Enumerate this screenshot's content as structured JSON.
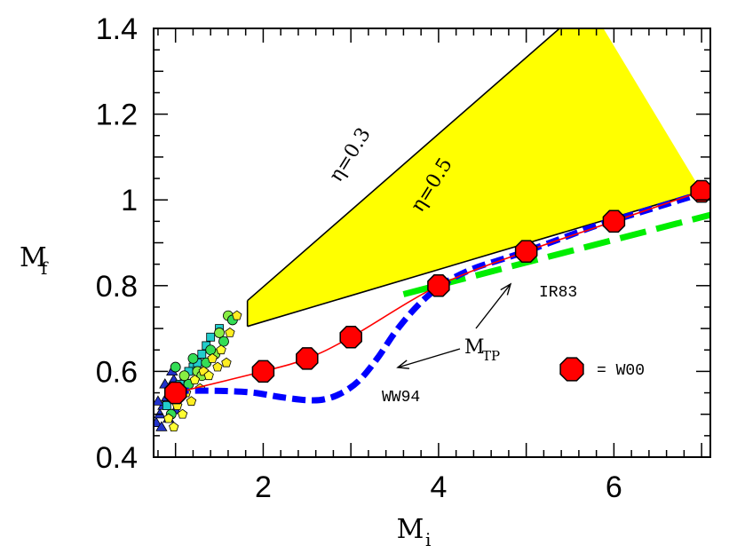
{
  "chart_data": {
    "type": "line",
    "xlabel": "M",
    "xlabel_sub": "i",
    "ylabel": "M",
    "ylabel_sub": "f",
    "xlim": [
      0.75,
      7.1
    ],
    "ylim": [
      0.4,
      1.4
    ],
    "x_ticks": [
      2,
      4,
      6
    ],
    "x_tick_labels": [
      "2",
      "4",
      "6"
    ],
    "y_ticks": [
      0.4,
      0.6,
      0.8,
      1.0,
      1.2,
      1.4
    ],
    "y_tick_labels": [
      "0.4",
      "0.6",
      "0.8",
      "1",
      "1.2",
      "1.4"
    ],
    "colors": {
      "band": "#ffff00",
      "w00_line": "#ff0000",
      "w00_marker": "#ff0000",
      "ww94": "#0000ff",
      "ir83": "#00ee00",
      "axes": "#000000"
    },
    "series": [
      {
        "name": "W00",
        "style": "markers+line",
        "x": [
          1.0,
          2.0,
          2.5,
          3.0,
          4.0,
          5.0,
          6.0,
          7.0
        ],
        "y": [
          0.55,
          0.6,
          0.63,
          0.68,
          0.8,
          0.88,
          0.95,
          1.02
        ]
      },
      {
        "name": "WW94",
        "style": "dashed-thick",
        "x": [
          1.0,
          1.3,
          1.6,
          1.9,
          2.2,
          2.5,
          2.7,
          2.9,
          3.1,
          3.3,
          3.5,
          3.7,
          3.9,
          4.1,
          4.4,
          4.7,
          5.0,
          5.4,
          5.8,
          6.2,
          6.6,
          7.0
        ],
        "y": [
          0.555,
          0.555,
          0.554,
          0.55,
          0.54,
          0.533,
          0.535,
          0.55,
          0.58,
          0.63,
          0.69,
          0.74,
          0.78,
          0.81,
          0.84,
          0.86,
          0.88,
          0.91,
          0.94,
          0.965,
          0.99,
          1.015
        ]
      },
      {
        "name": "IR83",
        "style": "dashed-thick",
        "x": [
          3.6,
          7.1
        ],
        "y": [
          0.78,
          0.965
        ]
      }
    ],
    "band": {
      "upper": {
        "label": "η=0.3",
        "x": [
          1.82,
          5.38
        ],
        "y": [
          0.765,
          1.4
        ]
      },
      "lower": {
        "label": "η=0.5",
        "x": [
          1.82,
          7.0
        ],
        "y": [
          0.705,
          1.02
        ]
      }
    },
    "observations": {
      "triangles": {
        "x": [
          0.78,
          0.82,
          0.86,
          0.9,
          0.94,
          0.98,
          0.8,
          0.88,
          0.96,
          0.84,
          0.92,
          1.0
        ],
        "y": [
          0.48,
          0.5,
          0.52,
          0.54,
          0.56,
          0.58,
          0.53,
          0.57,
          0.6,
          0.47,
          0.49,
          0.51
        ]
      },
      "circles": {
        "x": [
          0.95,
          1.05,
          1.15,
          1.25,
          1.35,
          1.45,
          1.55,
          1.6,
          1.65,
          1.1,
          1.2,
          1.3,
          1.4,
          1.5,
          1.0
        ],
        "y": [
          0.5,
          0.54,
          0.57,
          0.6,
          0.62,
          0.64,
          0.67,
          0.73,
          0.72,
          0.59,
          0.63,
          0.59,
          0.65,
          0.69,
          0.61
        ]
      },
      "squares": {
        "x": [
          0.9,
          1.0,
          1.1,
          1.2,
          1.3,
          1.15,
          1.25,
          1.35,
          1.05,
          1.4,
          1.5
        ],
        "y": [
          0.52,
          0.55,
          0.58,
          0.61,
          0.64,
          0.6,
          0.62,
          0.66,
          0.57,
          0.68,
          0.7
        ]
      },
      "pentagons": {
        "x": [
          0.92,
          1.02,
          1.12,
          1.22,
          1.32,
          1.42,
          1.52,
          1.62,
          1.7,
          1.08,
          1.18,
          1.28,
          1.38,
          1.48,
          1.58,
          0.98
        ],
        "y": [
          0.49,
          0.52,
          0.55,
          0.58,
          0.6,
          0.63,
          0.65,
          0.69,
          0.73,
          0.5,
          0.53,
          0.56,
          0.59,
          0.61,
          0.62,
          0.47
        ]
      }
    },
    "annotations": {
      "ir83": "IR83",
      "ww94": "WW94",
      "mtp": "M",
      "mtp_sub": "TP",
      "legend_w00": "= W00",
      "eta_upper": "η=0.3",
      "eta_lower": "η=0.5"
    }
  }
}
